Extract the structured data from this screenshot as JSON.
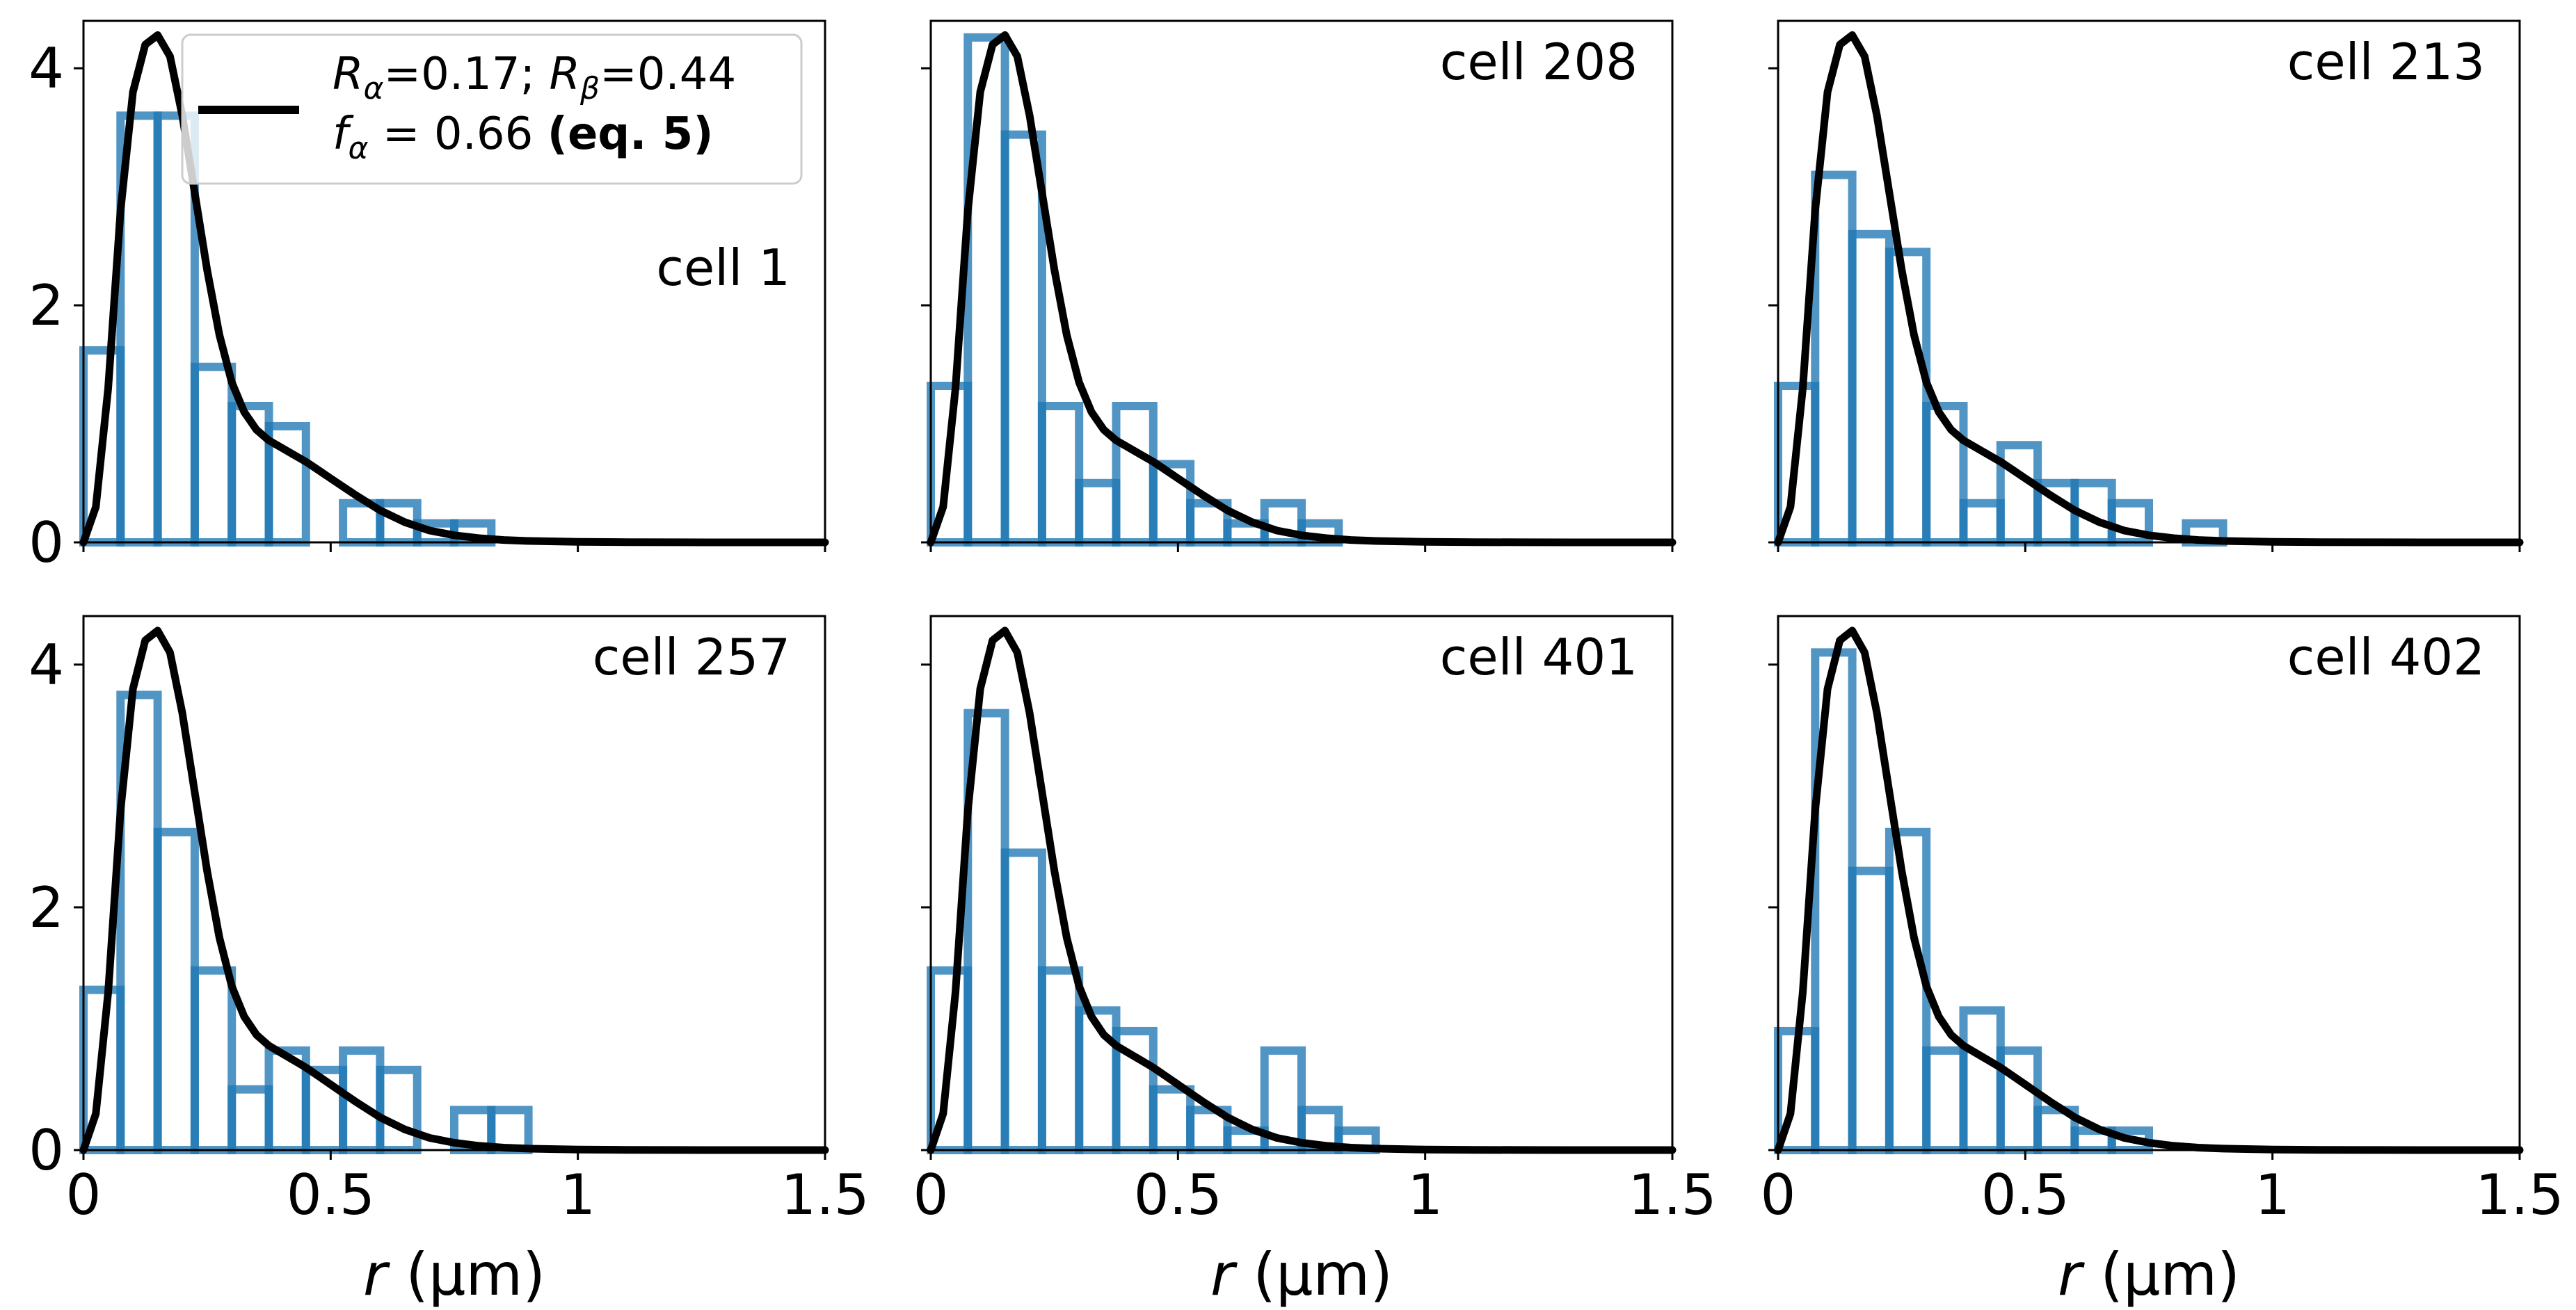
{
  "chart_data": {
    "type": "histogram_grid",
    "shared_y": true,
    "xlabel": "r (µm)",
    "xlabel_symbol": "r",
    "xlabel_unit": "(µm)",
    "xlim": [
      0,
      1.5
    ],
    "ylim": [
      0,
      4.4
    ],
    "xticks": [
      0,
      0.5,
      1,
      1.5
    ],
    "xtick_labels": [
      "0",
      "0.5",
      "1",
      "1.5"
    ],
    "yticks": [
      0,
      2,
      4
    ],
    "ytick_labels": [
      "0",
      "2",
      "4"
    ],
    "bin_width": 0.075,
    "histogram_color": "#1f77b4",
    "curve_color": "#000000",
    "legend": {
      "placement": "top-left of first panel",
      "line1_parts": [
        "R",
        "α",
        "=0.17; ",
        "R",
        "β",
        "=0.44"
      ],
      "line2_parts": [
        "f",
        "α",
        " = 0.66 ",
        "(eq. 5)"
      ]
    },
    "fit_curve": {
      "name": "eq. 5",
      "R_alpha": 0.17,
      "R_beta": 0.44,
      "f_alpha": 0.66,
      "x": [
        0,
        0.025,
        0.05,
        0.075,
        0.1,
        0.125,
        0.15,
        0.175,
        0.2,
        0.225,
        0.25,
        0.275,
        0.3,
        0.325,
        0.35,
        0.375,
        0.4,
        0.425,
        0.45,
        0.475,
        0.5,
        0.525,
        0.55,
        0.6,
        0.65,
        0.7,
        0.75,
        0.8,
        0.85,
        0.9,
        1.0,
        1.1,
        1.2,
        1.3,
        1.4,
        1.5
      ],
      "y": [
        0,
        0.3,
        1.3,
        2.8,
        3.8,
        4.2,
        4.28,
        4.1,
        3.6,
        2.95,
        2.3,
        1.75,
        1.35,
        1.1,
        0.95,
        0.86,
        0.8,
        0.74,
        0.68,
        0.61,
        0.54,
        0.47,
        0.4,
        0.27,
        0.17,
        0.1,
        0.06,
        0.035,
        0.02,
        0.012,
        0.004,
        0.0015,
        0.0005,
        0.0002,
        0.0001,
        0.0
      ]
    },
    "panels": [
      {
        "label": "cell 1",
        "heights": [
          1.62,
          3.6,
          3.6,
          1.48,
          1.15,
          0.98,
          0.0,
          0.33,
          0.33,
          0.16,
          0.16
        ]
      },
      {
        "label": "cell 208",
        "heights": [
          1.32,
          4.26,
          3.44,
          1.15,
          0.5,
          1.15,
          0.66,
          0.33,
          0.16,
          0.33,
          0.16
        ]
      },
      {
        "label": "cell 213",
        "heights": [
          1.32,
          3.1,
          2.6,
          2.45,
          1.15,
          0.33,
          0.82,
          0.5,
          0.5,
          0.33,
          0.0,
          0.16
        ]
      },
      {
        "label": "cell 257",
        "heights": [
          1.32,
          3.75,
          2.62,
          1.48,
          0.5,
          0.82,
          0.66,
          0.82,
          0.66,
          0.0,
          0.33,
          0.33
        ]
      },
      {
        "label": "cell 401",
        "heights": [
          1.48,
          3.6,
          2.45,
          1.48,
          1.15,
          0.98,
          0.5,
          0.33,
          0.16,
          0.82,
          0.33,
          0.16
        ]
      },
      {
        "label": "cell 402",
        "heights": [
          0.98,
          4.1,
          2.3,
          2.62,
          0.82,
          1.15,
          0.82,
          0.33,
          0.16,
          0.16
        ]
      }
    ]
  }
}
